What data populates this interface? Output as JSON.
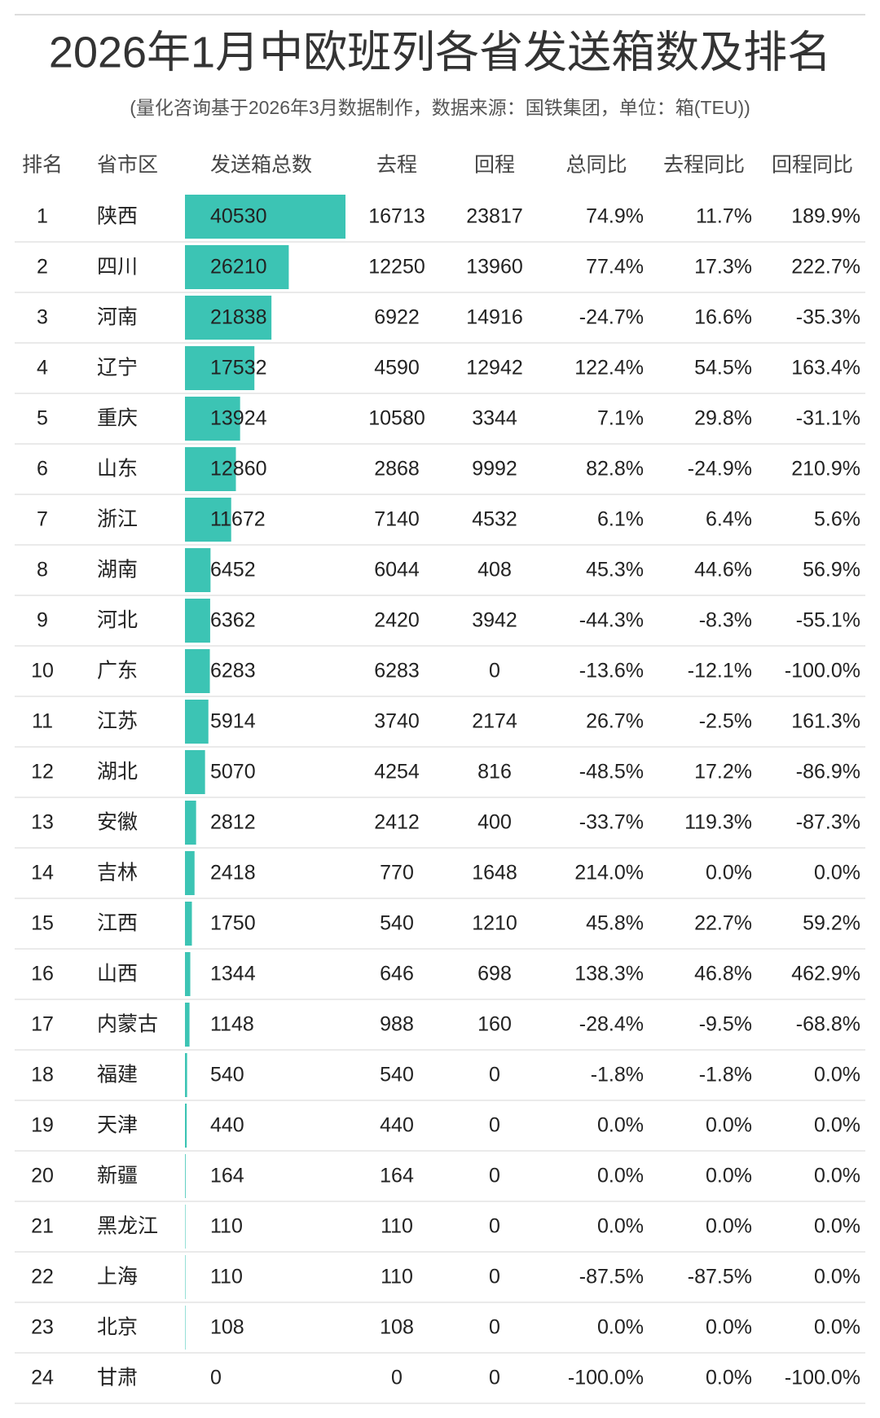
{
  "header": {
    "title": "2026年1月中欧班列各省发送箱数及排名",
    "subtitle": "(量化咨询基于2026年3月数据制作，数据来源：国铁集团，单位：箱(TEU))"
  },
  "table": {
    "columns": [
      "排名",
      "省市区",
      "发送箱总数",
      "去程",
      "回程",
      "总同比",
      "去程同比",
      "回程同比"
    ],
    "bar_color": "#3cc4b4",
    "rows": [
      [
        1,
        "陕西",
        40530,
        16713,
        23817,
        "74.9%",
        "11.7%",
        "189.9%"
      ],
      [
        2,
        "四川",
        26210,
        12250,
        13960,
        "77.4%",
        "17.3%",
        "222.7%"
      ],
      [
        3,
        "河南",
        21838,
        6922,
        14916,
        "-24.7%",
        "16.6%",
        "-35.3%"
      ],
      [
        4,
        "辽宁",
        17532,
        4590,
        12942,
        "122.4%",
        "54.5%",
        "163.4%"
      ],
      [
        5,
        "重庆",
        13924,
        10580,
        3344,
        "7.1%",
        "29.8%",
        "-31.1%"
      ],
      [
        6,
        "山东",
        12860,
        2868,
        9992,
        "82.8%",
        "-24.9%",
        "210.9%"
      ],
      [
        7,
        "浙江",
        11672,
        7140,
        4532,
        "6.1%",
        "6.4%",
        "5.6%"
      ],
      [
        8,
        "湖南",
        6452,
        6044,
        408,
        "45.3%",
        "44.6%",
        "56.9%"
      ],
      [
        9,
        "河北",
        6362,
        2420,
        3942,
        "-44.3%",
        "-8.3%",
        "-55.1%"
      ],
      [
        10,
        "广东",
        6283,
        6283,
        0,
        "-13.6%",
        "-12.1%",
        "-100.0%"
      ],
      [
        11,
        "江苏",
        5914,
        3740,
        2174,
        "26.7%",
        "-2.5%",
        "161.3%"
      ],
      [
        12,
        "湖北",
        5070,
        4254,
        816,
        "-48.5%",
        "17.2%",
        "-86.9%"
      ],
      [
        13,
        "安徽",
        2812,
        2412,
        400,
        "-33.7%",
        "119.3%",
        "-87.3%"
      ],
      [
        14,
        "吉林",
        2418,
        770,
        1648,
        "214.0%",
        "0.0%",
        "0.0%"
      ],
      [
        15,
        "江西",
        1750,
        540,
        1210,
        "45.8%",
        "22.7%",
        "59.2%"
      ],
      [
        16,
        "山西",
        1344,
        646,
        698,
        "138.3%",
        "46.8%",
        "462.9%"
      ],
      [
        17,
        "内蒙古",
        1148,
        988,
        160,
        "-28.4%",
        "-9.5%",
        "-68.8%"
      ],
      [
        18,
        "福建",
        540,
        540,
        0,
        "-1.8%",
        "-1.8%",
        "0.0%"
      ],
      [
        19,
        "天津",
        440,
        440,
        0,
        "0.0%",
        "0.0%",
        "0.0%"
      ],
      [
        20,
        "新疆",
        164,
        164,
        0,
        "0.0%",
        "0.0%",
        "0.0%"
      ],
      [
        21,
        "黑龙江",
        110,
        110,
        0,
        "0.0%",
        "0.0%",
        "0.0%"
      ],
      [
        22,
        "上海",
        110,
        110,
        0,
        "-87.5%",
        "-87.5%",
        "0.0%"
      ],
      [
        23,
        "北京",
        108,
        108,
        0,
        "0.0%",
        "0.0%",
        "0.0%"
      ],
      [
        24,
        "甘肃",
        0,
        0,
        0,
        "-100.0%",
        "0.0%",
        "-100.0%"
      ]
    ]
  }
}
